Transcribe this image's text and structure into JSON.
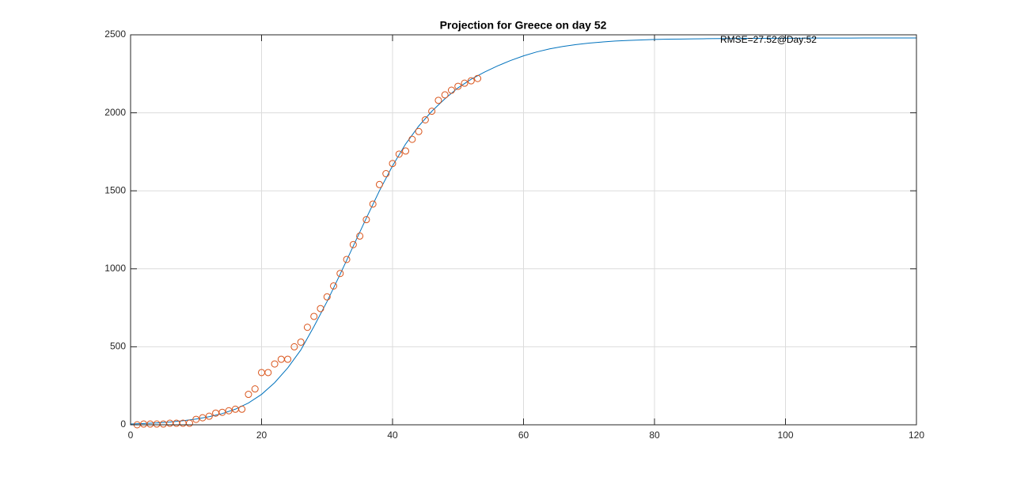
{
  "chart_data": {
    "type": "line",
    "title": "Projection for Greece on day 52",
    "annotation": "RMSE=27.52@Day:52",
    "xlim": [
      0,
      120
    ],
    "xticks": [
      0,
      20,
      40,
      60,
      80,
      100,
      120
    ],
    "ylim": [
      0,
      2500
    ],
    "yticks": [
      0,
      500,
      1000,
      1500,
      2000,
      2500
    ],
    "grid": true,
    "series": [
      {
        "kind": "line",
        "color": "#0072bd",
        "x": [
          0,
          2,
          4,
          6,
          8,
          10,
          12,
          14,
          16,
          18,
          20,
          22,
          24,
          26,
          28,
          30,
          32,
          34,
          36,
          38,
          40,
          42,
          44,
          46,
          48,
          50,
          52,
          54,
          56,
          58,
          60,
          62,
          64,
          66,
          68,
          70,
          72,
          74,
          76,
          78,
          80,
          82,
          84,
          86,
          88,
          90,
          92,
          94,
          96,
          98,
          100,
          102,
          104,
          106,
          108,
          110,
          112,
          114,
          116,
          118,
          120
        ],
        "values": [
          5,
          8,
          12,
          18,
          26,
          37,
          52,
          72,
          100,
          140,
          195,
          270,
          365,
          480,
          630,
          790,
          965,
          1145,
          1325,
          1500,
          1660,
          1800,
          1915,
          2010,
          2090,
          2160,
          2215,
          2260,
          2300,
          2335,
          2365,
          2390,
          2410,
          2425,
          2437,
          2447,
          2454,
          2460,
          2464,
          2467,
          2470,
          2472,
          2473,
          2474,
          2475,
          2476,
          2476,
          2477,
          2477,
          2478,
          2478,
          2478,
          2479,
          2479,
          2479,
          2479,
          2480,
          2480,
          2480,
          2480,
          2480
        ]
      },
      {
        "kind": "markers",
        "color": "#d95319",
        "x": [
          1,
          2,
          3,
          4,
          5,
          6,
          7,
          8,
          9,
          10,
          11,
          12,
          13,
          14,
          15,
          16,
          17,
          18,
          19,
          20,
          21,
          22,
          23,
          24,
          25,
          26,
          27,
          28,
          29,
          30,
          31,
          32,
          33,
          34,
          35,
          36,
          37,
          38,
          39,
          40,
          41,
          42,
          43,
          44,
          45,
          46,
          47,
          48,
          49,
          50,
          51,
          52,
          53
        ],
        "values": [
          0,
          5,
          5,
          5,
          5,
          10,
          10,
          10,
          10,
          35,
          45,
          55,
          75,
          80,
          90,
          100,
          100,
          195,
          230,
          335,
          335,
          390,
          420,
          420,
          500,
          530,
          625,
          695,
          745,
          820,
          890,
          970,
          1060,
          1155,
          1210,
          1315,
          1415,
          1540,
          1610,
          1675,
          1735,
          1755,
          1830,
          1880,
          1955,
          2010,
          2080,
          2115,
          2145,
          2170,
          2190,
          2205,
          2220
        ]
      }
    ]
  }
}
